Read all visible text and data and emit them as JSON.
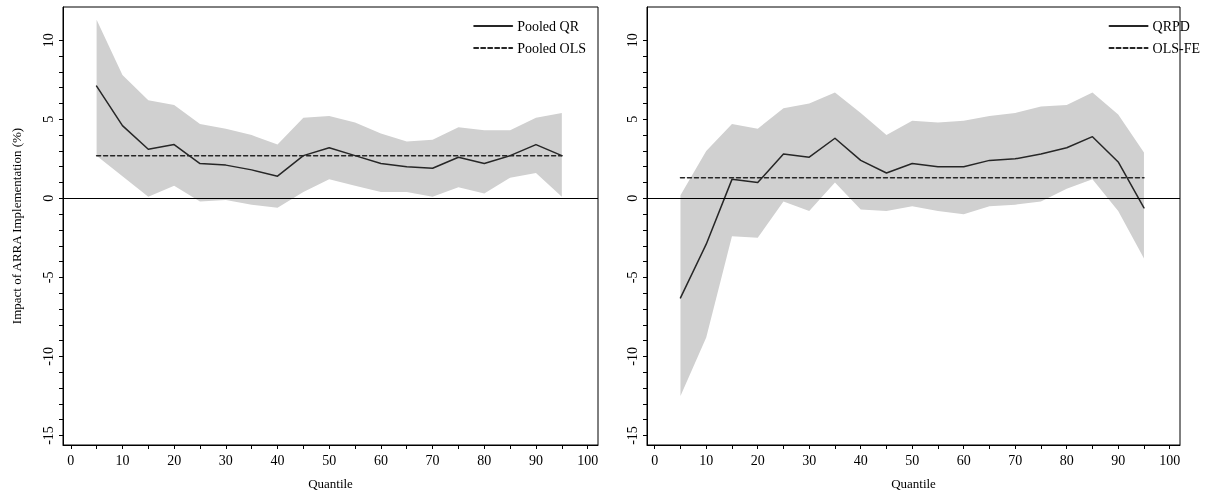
{
  "chart_data": [
    {
      "type": "line",
      "xlabel": "Quantile",
      "ylabel": "Impact of ARRA Implementation (%)",
      "x": [
        5,
        10,
        15,
        20,
        25,
        30,
        35,
        40,
        45,
        50,
        55,
        60,
        65,
        70,
        75,
        80,
        85,
        90,
        95
      ],
      "series": [
        {
          "name": "Pooled QR",
          "color": "#262626",
          "line_style": "solid",
          "values": [
            7.1,
            4.6,
            3.1,
            3.4,
            2.2,
            2.1,
            1.8,
            1.4,
            2.7,
            3.2,
            2.7,
            2.2,
            2.0,
            1.9,
            2.6,
            2.2,
            2.7,
            3.4,
            2.7
          ],
          "lower": [
            2.7,
            1.4,
            0.1,
            0.8,
            -0.2,
            -0.1,
            -0.4,
            -0.6,
            0.4,
            1.2,
            0.8,
            0.4,
            0.4,
            0.1,
            0.7,
            0.3,
            1.3,
            1.6,
            0.1
          ],
          "upper": [
            11.3,
            7.8,
            6.2,
            5.9,
            4.7,
            4.4,
            4.0,
            3.4,
            5.1,
            5.2,
            4.8,
            4.1,
            3.6,
            3.7,
            4.5,
            4.3,
            4.3,
            5.1,
            5.4
          ]
        },
        {
          "name": "Pooled OLS",
          "color": "#262626",
          "line_style": "dashed",
          "values": [
            2.7,
            2.7,
            2.7,
            2.7,
            2.7,
            2.7,
            2.7,
            2.7,
            2.7,
            2.7,
            2.7,
            2.7,
            2.7,
            2.7,
            2.7,
            2.7,
            2.7,
            2.7,
            2.7
          ]
        }
      ],
      "ref_lines": [
        {
          "axis": "y",
          "value": 0,
          "color": "#000000"
        }
      ],
      "xlim": [
        -1.5,
        102
      ],
      "ylim": [
        -15.6,
        12.1
      ],
      "xticks": [
        0,
        {
          "value": 5,
          "label": null
        },
        10,
        {
          "value": 15,
          "label": null
        },
        20,
        {
          "value": 25,
          "label": null
        },
        30,
        {
          "value": 35,
          "label": null
        },
        40,
        {
          "value": 45,
          "label": null
        },
        50,
        {
          "value": 55,
          "label": null
        },
        60,
        {
          "value": 65,
          "label": null
        },
        70,
        {
          "value": 75,
          "label": null
        },
        80,
        {
          "value": 85,
          "label": null
        },
        90,
        {
          "value": 95,
          "label": null
        },
        100
      ],
      "yticks": [
        -15,
        {
          "value": -14,
          "label": null
        },
        {
          "value": -13,
          "label": null
        },
        {
          "value": -12,
          "label": null
        },
        {
          "value": -11,
          "label": null
        },
        -10,
        {
          "value": -9,
          "label": null
        },
        {
          "value": -8,
          "label": null
        },
        {
          "value": -7,
          "label": null
        },
        {
          "value": -6,
          "label": null
        },
        -5,
        {
          "value": -4,
          "label": null
        },
        {
          "value": -3,
          "label": null
        },
        {
          "value": -2,
          "label": null
        },
        {
          "value": -1,
          "label": null
        },
        0,
        {
          "value": 1,
          "label": null
        },
        {
          "value": 2,
          "label": null
        },
        {
          "value": 3,
          "label": null
        },
        {
          "value": 4,
          "label": null
        },
        5,
        {
          "value": 6,
          "label": null
        },
        {
          "value": 7,
          "label": null
        },
        {
          "value": 8,
          "label": null
        },
        {
          "value": 9,
          "label": null
        },
        10
      ],
      "legend": "top right",
      "grid": false,
      "marker": "none"
    },
    {
      "type": "line",
      "xlabel": "Quantile",
      "x": [
        5,
        10,
        15,
        20,
        25,
        30,
        35,
        40,
        45,
        50,
        55,
        60,
        65,
        70,
        75,
        80,
        85,
        90,
        95
      ],
      "series": [
        {
          "name": "QRPD",
          "color": "#262626",
          "line_style": "solid",
          "values": [
            -6.3,
            -2.9,
            1.2,
            1.0,
            2.8,
            2.6,
            3.8,
            2.4,
            1.6,
            2.2,
            2.0,
            2.0,
            2.4,
            2.5,
            2.8,
            3.2,
            3.9,
            2.3,
            -0.6
          ],
          "lower": [
            -12.5,
            -8.8,
            -2.4,
            -2.5,
            -0.2,
            -0.8,
            1.0,
            -0.7,
            -0.8,
            -0.5,
            -0.8,
            -1.0,
            -0.5,
            -0.4,
            -0.2,
            0.6,
            1.2,
            -0.8,
            -3.8
          ],
          "upper": [
            0.2,
            3.0,
            4.7,
            4.4,
            5.7,
            6.0,
            6.7,
            5.4,
            4.0,
            4.9,
            4.8,
            4.9,
            5.2,
            5.4,
            5.8,
            5.9,
            6.7,
            5.3,
            2.9
          ]
        },
        {
          "name": "OLS-FE",
          "color": "#262626",
          "line_style": "dashed",
          "values": [
            1.3,
            1.3,
            1.3,
            1.3,
            1.3,
            1.3,
            1.3,
            1.3,
            1.3,
            1.3,
            1.3,
            1.3,
            1.3,
            1.3,
            1.3,
            1.3,
            1.3,
            1.3,
            1.3
          ]
        }
      ],
      "ref_lines": [
        {
          "axis": "y",
          "value": 0,
          "color": "#000000"
        }
      ],
      "xlim": [
        -1.5,
        102
      ],
      "ylim": [
        -15.6,
        12.1
      ],
      "xticks": [
        0,
        {
          "value": 5,
          "label": null
        },
        10,
        {
          "value": 15,
          "label": null
        },
        20,
        {
          "value": 25,
          "label": null
        },
        30,
        {
          "value": 35,
          "label": null
        },
        40,
        {
          "value": 45,
          "label": null
        },
        50,
        {
          "value": 55,
          "label": null
        },
        60,
        {
          "value": 65,
          "label": null
        },
        70,
        {
          "value": 75,
          "label": null
        },
        80,
        {
          "value": 85,
          "label": null
        },
        90,
        {
          "value": 95,
          "label": null
        },
        100
      ],
      "yticks": [
        -15,
        {
          "value": -14,
          "label": null
        },
        {
          "value": -13,
          "label": null
        },
        {
          "value": -12,
          "label": null
        },
        {
          "value": -11,
          "label": null
        },
        -10,
        {
          "value": -9,
          "label": null
        },
        {
          "value": -8,
          "label": null
        },
        {
          "value": -7,
          "label": null
        },
        {
          "value": -6,
          "label": null
        },
        -5,
        {
          "value": -4,
          "label": null
        },
        {
          "value": -3,
          "label": null
        },
        {
          "value": -2,
          "label": null
        },
        {
          "value": -1,
          "label": null
        },
        0,
        {
          "value": 1,
          "label": null
        },
        {
          "value": 2,
          "label": null
        },
        {
          "value": 3,
          "label": null
        },
        {
          "value": 4,
          "label": null
        },
        5,
        {
          "value": 6,
          "label": null
        },
        {
          "value": 7,
          "label": null
        },
        {
          "value": 8,
          "label": null
        },
        {
          "value": 9,
          "label": null
        },
        10
      ],
      "legend": "top right",
      "grid": false,
      "marker": "none"
    }
  ]
}
